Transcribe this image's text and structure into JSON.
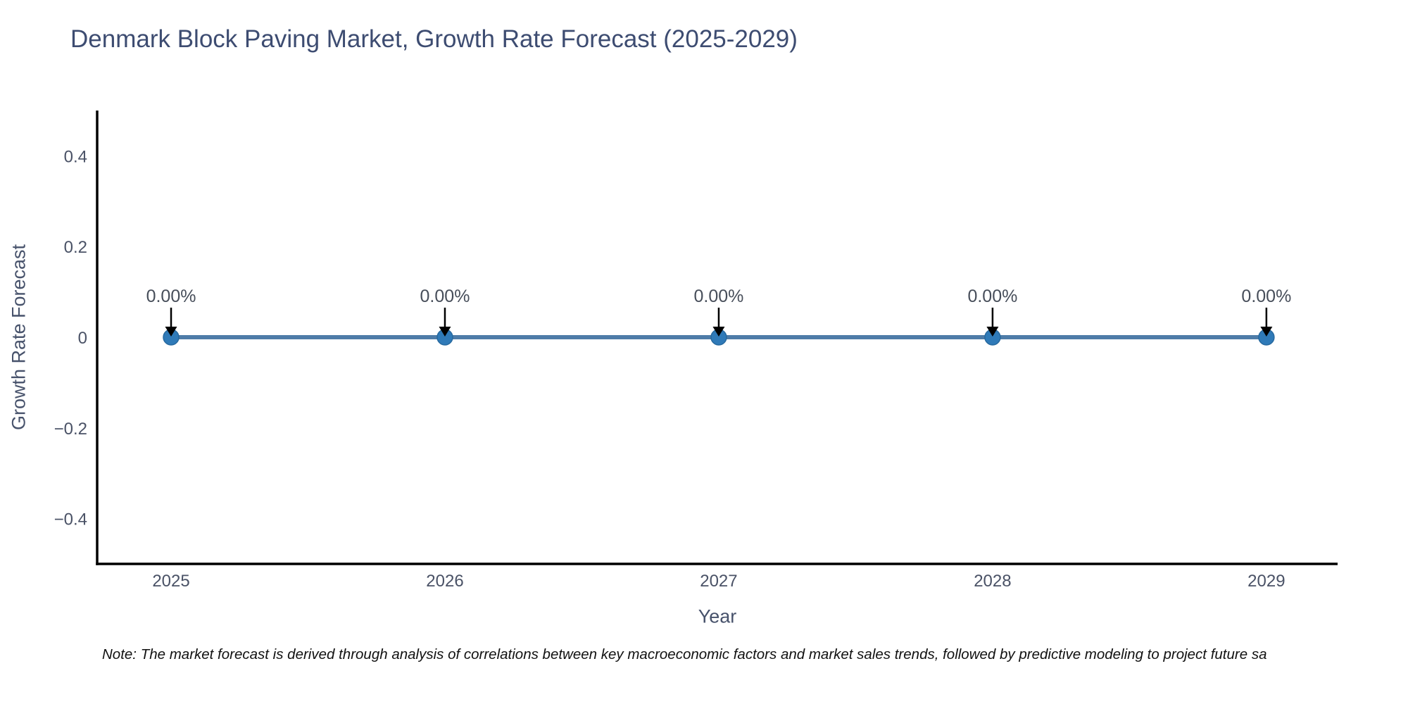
{
  "note": {
    "text": "Note: The market forecast is derived through analysis of correlations between key macroeconomic factors and market sales trends, followed by predictive modeling to project future sa"
  },
  "chart_data": {
    "type": "line",
    "title": "Denmark Block Paving Market, Growth Rate Forecast (2025-2029)",
    "xlabel": "Year",
    "ylabel": "Growth Rate Forecast",
    "x": [
      2025,
      2026,
      2027,
      2028,
      2029
    ],
    "categories": [
      "2025",
      "2026",
      "2027",
      "2028",
      "2029"
    ],
    "series": [
      {
        "name": "Growth Rate Forecast",
        "values": [
          0,
          0,
          0,
          0,
          0
        ]
      }
    ],
    "point_labels": [
      "0.00%",
      "0.00%",
      "0.00%",
      "0.00%",
      "0.00%"
    ],
    "yticks": {
      "labels": [
        "0.4",
        "0.2",
        "0",
        "−0.2",
        "−0.4"
      ],
      "values": [
        0.4,
        0.2,
        0,
        -0.2,
        -0.4
      ]
    },
    "xlim": [
      2024.73,
      2029.26
    ],
    "ylim": [
      -0.5,
      0.5
    ],
    "grid": false,
    "legend": false,
    "axis_color": "#000000",
    "tick_color": "#4a5266",
    "annotation_color": "#474e5a",
    "annotation_arrow_color": "#000000",
    "line_color": "#4e7ca8",
    "marker_color": "#2f7ab8",
    "marker_edge_color": "#27699f"
  }
}
